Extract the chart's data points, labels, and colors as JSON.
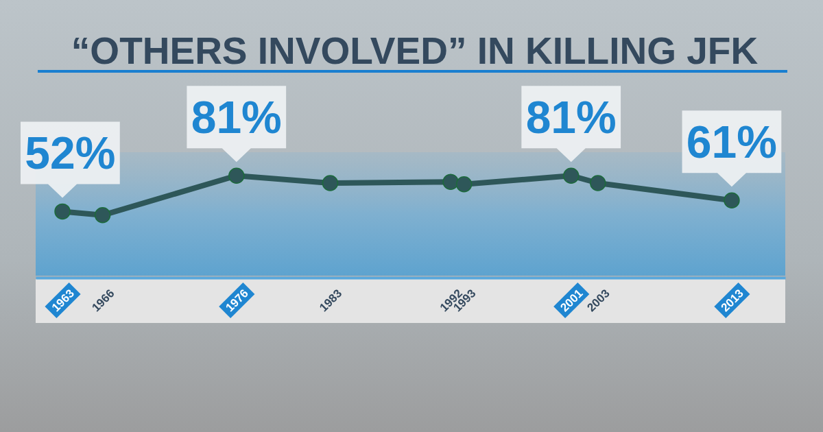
{
  "chart_data": {
    "type": "line",
    "title": "“OTHERS INVOLVED” IN KILLING JFK",
    "x": [
      1963,
      1966,
      1976,
      1983,
      1992,
      1993,
      2001,
      2003,
      2013
    ],
    "values": [
      52,
      49,
      81,
      75,
      76,
      74,
      81,
      75,
      61
    ],
    "value_labels": [
      "52%",
      null,
      "81%",
      null,
      null,
      null,
      "81%",
      null,
      "61%"
    ],
    "color": "#2e5759",
    "marker": "circle",
    "xlim": [
      1961,
      2017
    ],
    "xticks": [
      1963,
      1966,
      1976,
      1983,
      1992,
      1993,
      2001,
      2003,
      2013
    ],
    "ylim": [
      0,
      100
    ],
    "tick_labels": "x"
  }
}
